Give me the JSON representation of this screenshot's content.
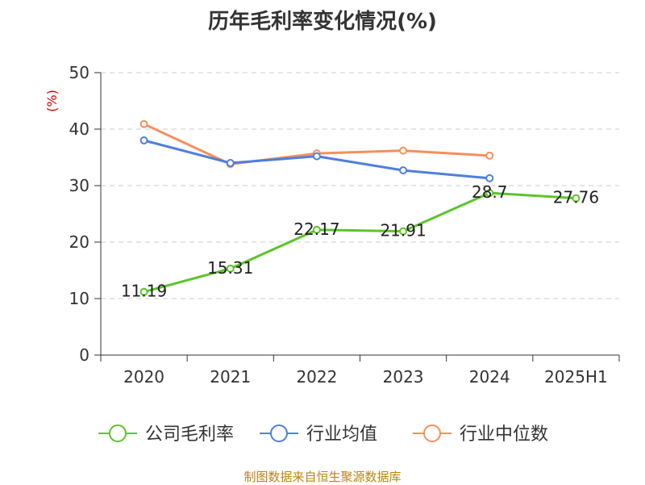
{
  "title": "历年毛利率变化情况(%)",
  "source": "制图数据来自恒生聚源数据库",
  "chart_data": {
    "type": "line",
    "title": "历年毛利率变化情况(%)",
    "categories": [
      "2020",
      "2021",
      "2022",
      "2023",
      "2024",
      "2025H1"
    ],
    "y_unit": "(%)",
    "ylim": [
      0,
      50
    ],
    "yticks": [
      0,
      10,
      20,
      30,
      40,
      50
    ],
    "grid": true,
    "legend_position": "bottom",
    "series": [
      {
        "name": "公司毛利率",
        "color": "#5cc42b",
        "values": [
          11.19,
          15.31,
          22.17,
          21.91,
          28.7,
          27.76
        ],
        "labels": [
          "11.19",
          "15.31",
          "22.17",
          "21.91",
          "28.7",
          "27.76"
        ]
      },
      {
        "name": "行业均值",
        "color": "#4f7fdd",
        "values": [
          38.0,
          34.0,
          35.2,
          32.7,
          31.3,
          null
        ]
      },
      {
        "name": "行业中位数",
        "color": "#f58f5b",
        "values": [
          40.9,
          33.8,
          35.7,
          36.2,
          35.3,
          null
        ]
      }
    ]
  }
}
